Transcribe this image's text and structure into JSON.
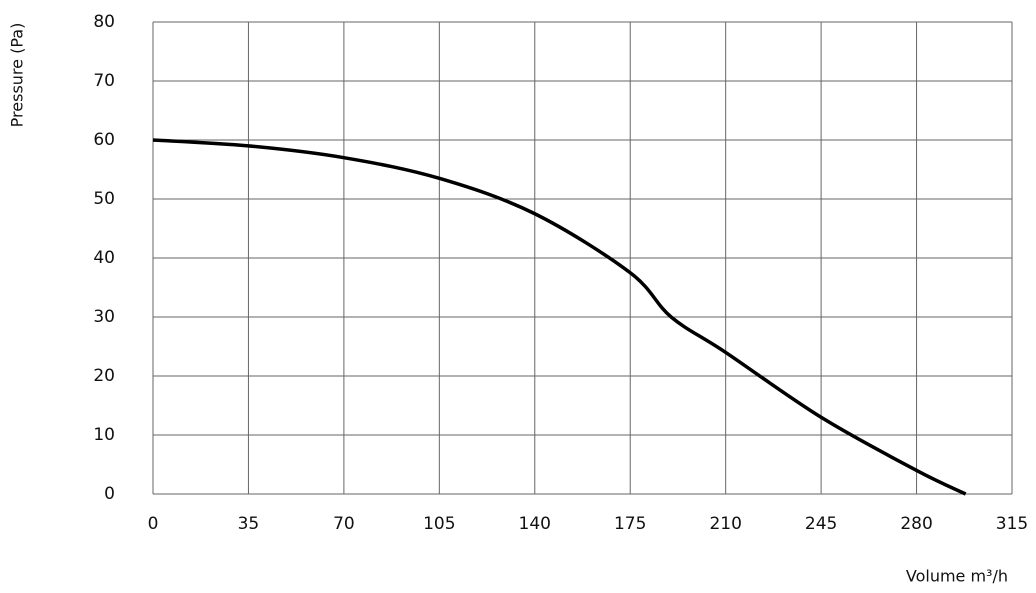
{
  "chart_data": {
    "type": "line",
    "x_label": "Volume m³/h",
    "y_label": "Pressure (Pa)",
    "x": [
      0,
      35,
      70,
      105,
      140,
      175,
      190,
      210,
      245,
      280,
      298
    ],
    "series": [
      {
        "name": "Pressure",
        "color": "#000000",
        "values": [
          60,
          59,
          57,
          53.5,
          47.5,
          37.5,
          30,
          24,
          13,
          4,
          0
        ]
      }
    ],
    "xlim": [
      0,
      315
    ],
    "xticks": [
      0,
      35,
      70,
      105,
      140,
      175,
      210,
      245,
      280,
      315
    ],
    "ylim": [
      0,
      80
    ],
    "yticks": [
      0,
      10,
      20,
      30,
      40,
      50,
      60,
      70,
      80
    ],
    "grid": true
  }
}
